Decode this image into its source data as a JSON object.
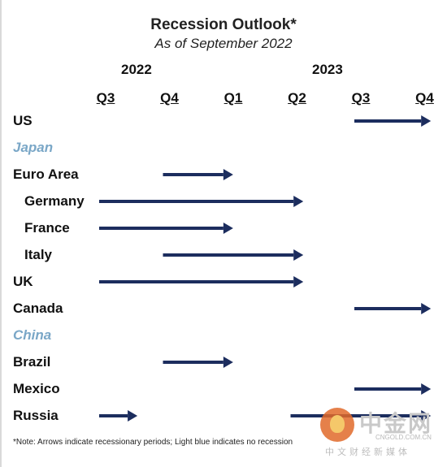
{
  "chart_data": {
    "type": "gantt",
    "title": "Recession Outlook*",
    "subtitle": "As of September 2022",
    "years": [
      {
        "label": "2022"
      },
      {
        "label": "2023"
      }
    ],
    "quarters": [
      "Q3",
      "Q4",
      "Q1",
      "Q2",
      "Q3",
      "Q4"
    ],
    "x_unit": "quarter index (0 = Q3 2022, 5 = Q4 2023)",
    "rows": [
      {
        "label": "US",
        "recession": true,
        "start": 4.0,
        "end": 5.2
      },
      {
        "label": "Japan",
        "recession": false
      },
      {
        "label": "Euro Area",
        "recession": true,
        "start": 1.0,
        "end": 2.1
      },
      {
        "label": "Germany",
        "recession": true,
        "start": 0.0,
        "end": 3.2
      },
      {
        "label": "France",
        "recession": true,
        "start": 0.0,
        "end": 2.1
      },
      {
        "label": "Italy",
        "recession": true,
        "start": 1.0,
        "end": 3.2
      },
      {
        "label": "UK",
        "recession": true,
        "start": 0.0,
        "end": 3.2
      },
      {
        "label": "Canada",
        "recession": true,
        "start": 4.0,
        "end": 5.2
      },
      {
        "label": "China",
        "recession": false
      },
      {
        "label": "Brazil",
        "recession": true,
        "start": 1.0,
        "end": 2.1
      },
      {
        "label": "Mexico",
        "recession": true,
        "start": 4.0,
        "end": 5.2
      },
      {
        "label": "Russia",
        "recession": true,
        "start": 0.0,
        "end": 0.6,
        "start2": 3.0,
        "end2": 5.2
      }
    ],
    "note": "*Note: Arrows indicate recessionary periods; Light blue indicates no recession",
    "colors": {
      "arrow": "#1c2d5e",
      "no_recession": "#7aa7c7"
    }
  },
  "watermark": {
    "brand_cn": "中金网",
    "url": "CNGOLD.COM.CN",
    "slogan_cn": "中文财经新媒体"
  }
}
